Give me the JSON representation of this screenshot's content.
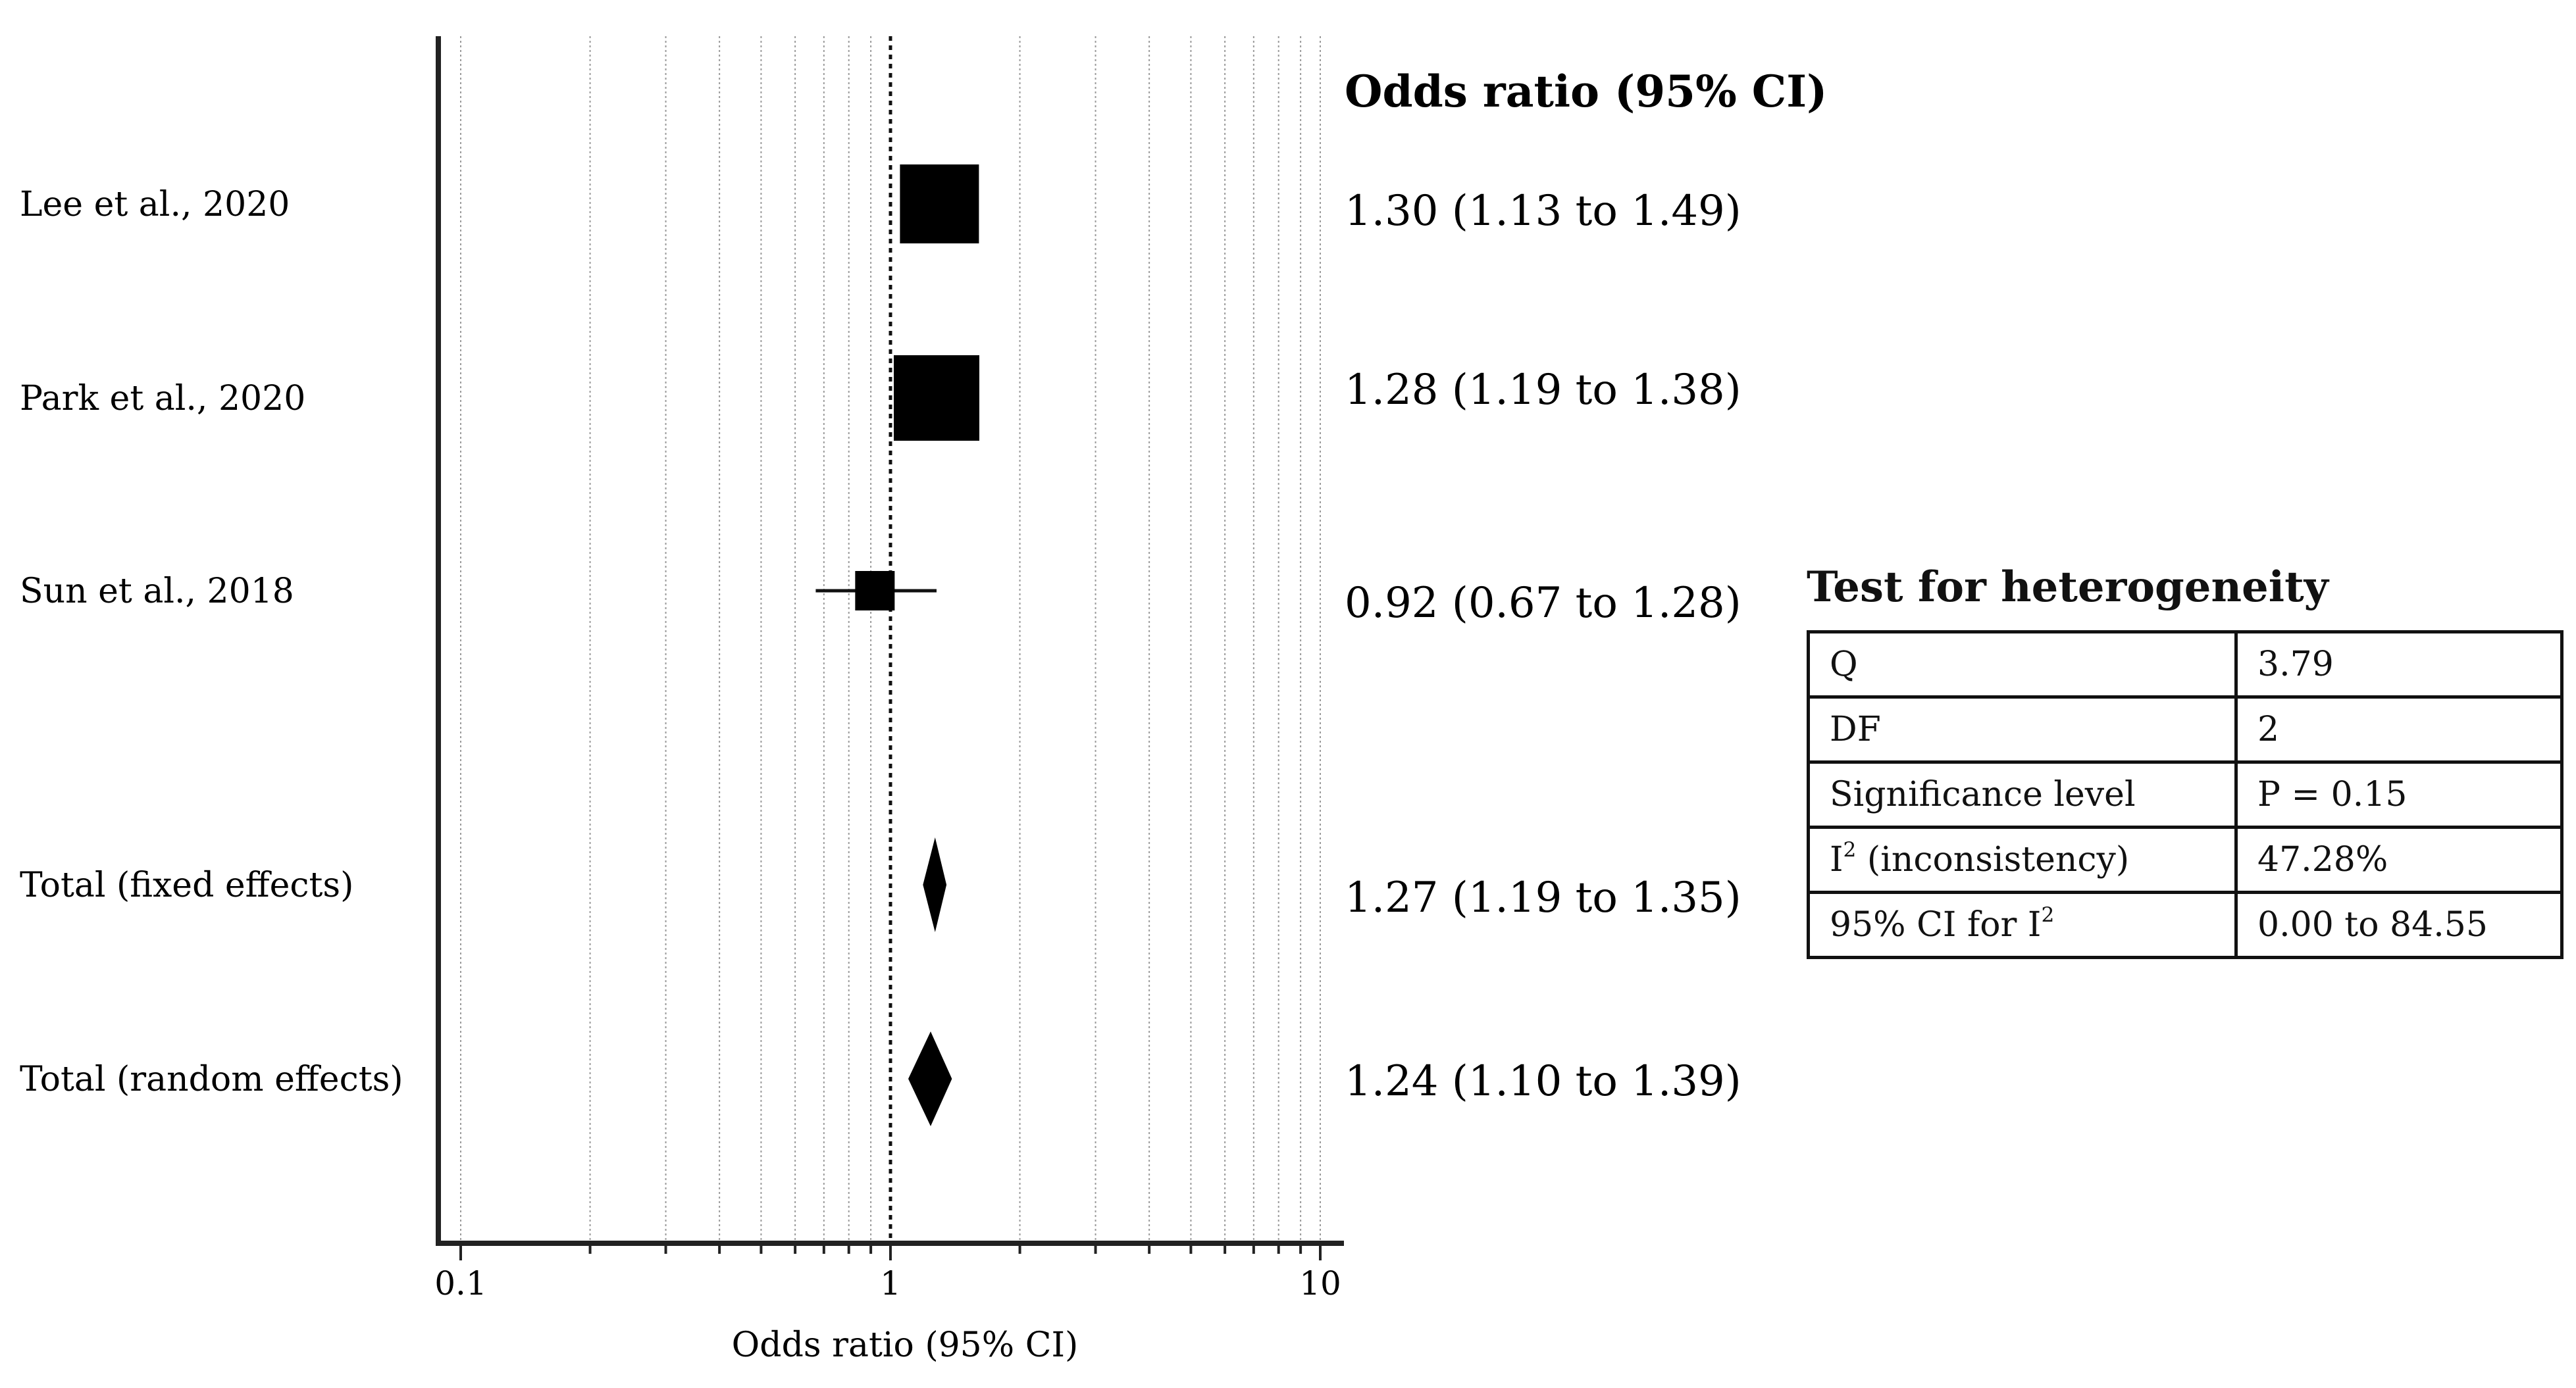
{
  "chart_data": {
    "type": "forest",
    "x_scale": "log",
    "xlim": [
      0.1,
      10
    ],
    "x_ticks": [
      "0.1",
      "1",
      "10"
    ],
    "reference_line": 1,
    "grid": "vertical minor (log decades)",
    "xlabel": "Odds ratio (95% CI)",
    "value_column_header": "Odds ratio (95% CI)",
    "studies": [
      {
        "label": "Lee et al., 2020",
        "or": 1.3,
        "ci": [
          1.13,
          1.49
        ],
        "text": "1.30 (1.13 to 1.49)",
        "marker": "square",
        "weight": 0.9
      },
      {
        "label": "Park et al., 2020",
        "or": 1.28,
        "ci": [
          1.19,
          1.38
        ],
        "text": "1.28 (1.19 to 1.38)",
        "marker": "square",
        "weight": 1.0
      },
      {
        "label": "Sun et al., 2018",
        "or": 0.92,
        "ci": [
          0.67,
          1.28
        ],
        "text": "0.92 (0.67 to 1.28)",
        "marker": "square",
        "weight": 0.3
      }
    ],
    "pooled": [
      {
        "label": "Total (fixed effects)",
        "or": 1.27,
        "ci": [
          1.19,
          1.35
        ],
        "text": "1.27 (1.19 to 1.35)",
        "marker": "diamond"
      },
      {
        "label": "Total (random effects)",
        "or": 1.24,
        "ci": [
          1.1,
          1.39
        ],
        "text": "1.24 (1.10 to 1.39)",
        "marker": "diamond"
      }
    ]
  },
  "heterogeneity": {
    "title": "Test for heterogeneity",
    "rows": [
      {
        "label": "Q",
        "value": "3.79"
      },
      {
        "label": "DF",
        "value": "2"
      },
      {
        "label": "Significance level",
        "value": "P = 0.15"
      },
      {
        "label_base": "I",
        "label_sup": "2",
        "label_rest": " (inconsistency)",
        "value": "47.28%"
      },
      {
        "label_base": "95% CI for I",
        "label_sup": "2",
        "label_rest": "",
        "value": "0.00 to 84.55"
      }
    ]
  }
}
